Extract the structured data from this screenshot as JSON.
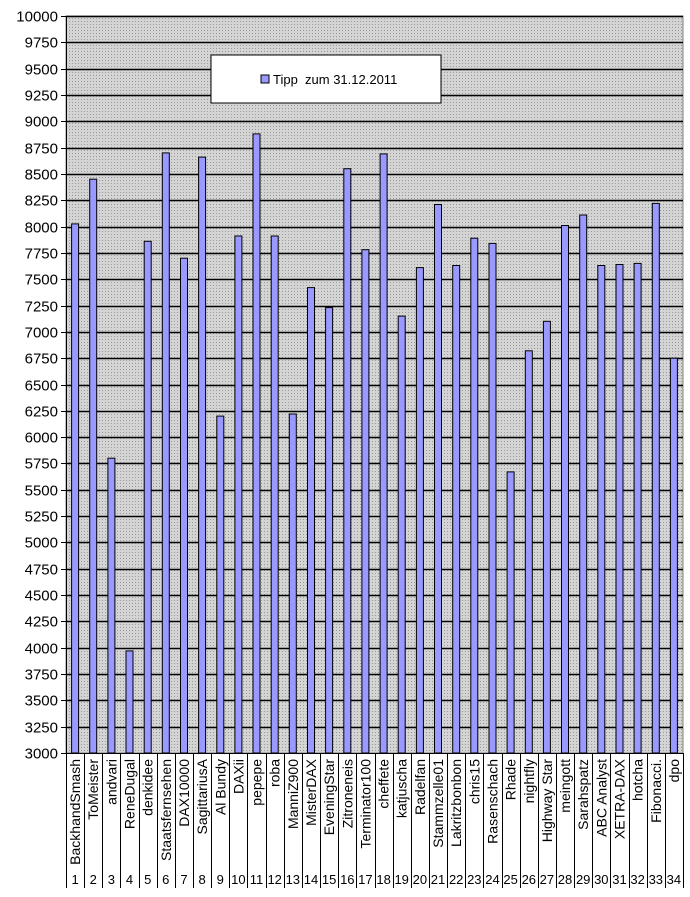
{
  "chart_data": {
    "type": "bar",
    "title": "",
    "xlabel": "",
    "ylabel": "",
    "ylim": [
      3000,
      10000
    ],
    "ytick_step": 250,
    "grid": true,
    "legend_position": "top-center (inside plot)",
    "series": [
      {
        "name": "Tipp  zum 31.12.2011",
        "color": "#9999ff",
        "values": [
          8025,
          8450,
          5800,
          3970,
          7860,
          8700,
          7700,
          8660,
          6200,
          7910,
          8880,
          7910,
          6220,
          7420,
          7230,
          8550,
          7780,
          8690,
          7150,
          7610,
          8210,
          7630,
          7890,
          7840,
          5670,
          6820,
          7100,
          8010,
          8110,
          7630,
          7640,
          7650,
          8220,
          6750
        ]
      }
    ],
    "categories": [
      "BackhandSmash",
      "ToMeister",
      "andvari",
      "ReneDugal",
      "denkidee",
      "Staatsfernsehen",
      "DAX10000",
      "SagittariusA",
      "Al Bundy",
      "DAXii",
      "pepepe",
      "roba",
      "ManniZ900",
      "MisterDAX",
      "EveningStar",
      "Zitroneneis",
      "Terminator100",
      "cheffete",
      "katjuscha",
      "Radelfan",
      "Stammzelle01",
      "Lakritzbonbon",
      "chris15",
      "Rasenschach",
      "Rhade",
      "nightfly",
      "Highway Star",
      "meingott",
      "Sarahspatz",
      "ABC Analyst",
      "XETRA-DAX",
      "hotcha",
      "Fibonacci.",
      "dpo"
    ],
    "category_numbers": [
      "1",
      "2",
      "3",
      "4",
      "5",
      "6",
      "7",
      "8",
      "9",
      "10",
      "11",
      "12",
      "13",
      "14",
      "15",
      "16",
      "17",
      "18",
      "19",
      "20",
      "21",
      "22",
      "23",
      "24",
      "25",
      "26",
      "27",
      "28",
      "29",
      "30",
      "31",
      "32",
      "33",
      "34"
    ],
    "yticks": [
      "3000",
      "3250",
      "3500",
      "3750",
      "4000",
      "4250",
      "4500",
      "4750",
      "5000",
      "5250",
      "5500",
      "5750",
      "6000",
      "6250",
      "6500",
      "6750",
      "7000",
      "7250",
      "7500",
      "7750",
      "8000",
      "8250",
      "8500",
      "8750",
      "9000",
      "9250",
      "9500",
      "9750",
      "10000"
    ]
  },
  "legend": {
    "label": "Tipp  zum 31.12.2011"
  },
  "colors": {
    "bar_fill": "#9999ff",
    "plot_background": "#c0c0c0",
    "gridline": "#000000"
  }
}
